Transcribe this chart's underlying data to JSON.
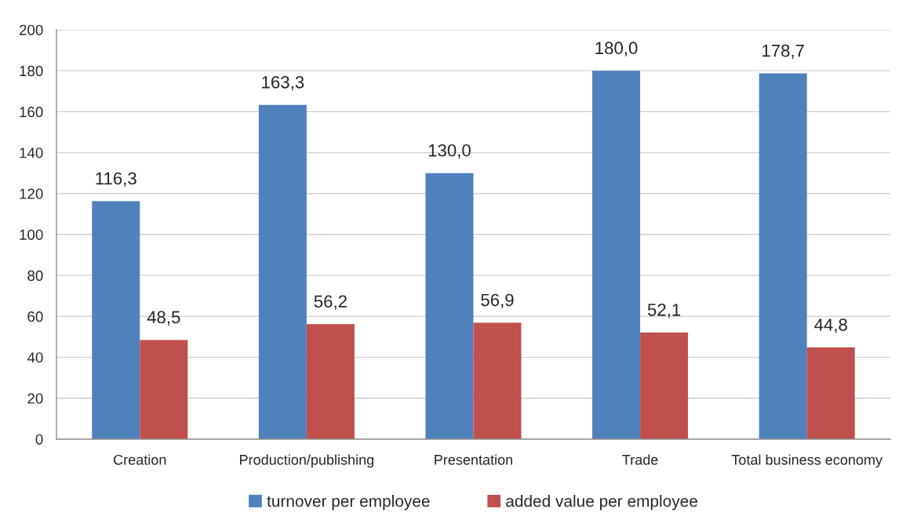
{
  "chart_data": {
    "type": "bar",
    "categories": [
      "Creation",
      "Production/publishing",
      "Presentation",
      "Trade",
      "Total business economy"
    ],
    "series": [
      {
        "name": "turnover per employee",
        "color": "#4f81bd",
        "values": [
          116.3,
          163.3,
          130.0,
          180.0,
          178.7
        ],
        "value_labels": [
          "116,3",
          "163,3",
          "130,0",
          "180,0",
          "178,7"
        ]
      },
      {
        "name": "added value per employee",
        "color": "#c0504d",
        "values": [
          48.5,
          56.2,
          56.9,
          52.1,
          44.8
        ],
        "value_labels": [
          "48,5",
          "56,2",
          "56,9",
          "52,1",
          "44,8"
        ]
      }
    ],
    "ylim": [
      0,
      200
    ],
    "yticks": [
      0,
      20,
      40,
      60,
      80,
      100,
      120,
      140,
      160,
      180,
      200
    ],
    "grid": "y",
    "legend": "bottom"
  }
}
